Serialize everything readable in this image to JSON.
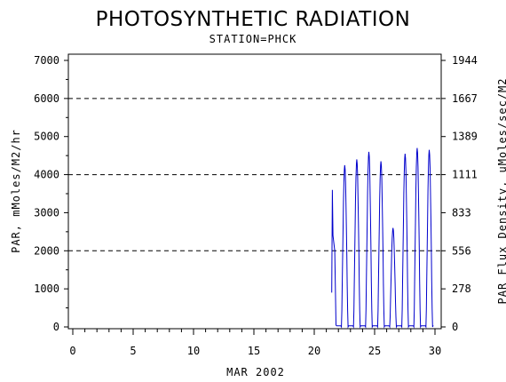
{
  "chart_data": {
    "type": "line",
    "title": "PHOTOSYNTHETIC RADIATION",
    "subtitle": "STATION=PHCK",
    "xlabel": "MAR 2002",
    "ylabel": "PAR, mMoles/M2/hr",
    "y2label": "PAR Flux Density, uMoles/sec/M2",
    "xlim": [
      0,
      30
    ],
    "ylim": [
      0,
      7000
    ],
    "x_ticks": [
      "0",
      "5",
      "10",
      "15",
      "20",
      "25",
      "30"
    ],
    "y_ticks": [
      "0",
      "1000",
      "2000",
      "3000",
      "4000",
      "5000",
      "6000",
      "7000"
    ],
    "y2_ticks": [
      "0",
      "278",
      "556",
      "833",
      "1111",
      "1389",
      "1667",
      "1944"
    ],
    "grid": "dashed lines at 2000, 4000, 6000",
    "line_color": "#0000cc",
    "series": [
      {
        "days": [
          {
            "day": 21,
            "peak": 3600
          },
          {
            "day": 22,
            "peak": 4250
          },
          {
            "day": 23,
            "peak": 4400
          },
          {
            "day": 24,
            "peak": 4600
          },
          {
            "day": 25,
            "peak": 4350
          },
          {
            "day": 26,
            "peak": 2600
          },
          {
            "day": 27,
            "peak": 4550
          },
          {
            "day": 28,
            "peak": 4700
          },
          {
            "day": 29,
            "peak": 4650
          }
        ]
      }
    ]
  }
}
